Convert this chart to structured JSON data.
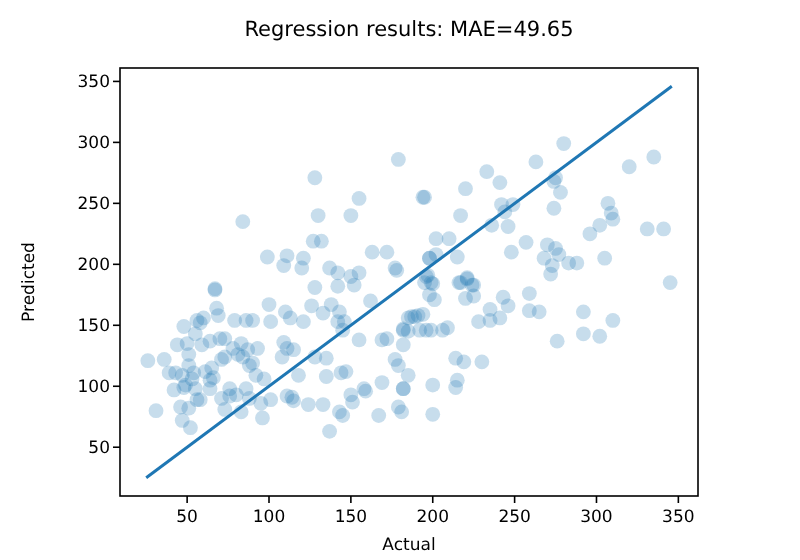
{
  "chart_data": {
    "type": "scatter",
    "title": "Regression results: MAE=49.65",
    "xlabel": "Actual",
    "ylabel": "Predicted",
    "xlim": [
      9,
      362
    ],
    "ylim": [
      10,
      361
    ],
    "xticks": [
      50,
      100,
      150,
      200,
      250,
      300,
      350
    ],
    "yticks": [
      50,
      100,
      150,
      200,
      250,
      300,
      350
    ],
    "grid": false,
    "marker": "circle",
    "series": [
      {
        "color": "#1f77b4",
        "x": [
          179,
          128,
          155,
          84,
          130,
          150,
          194,
          127,
          132,
          99,
          111,
          121,
          109,
          120,
          163,
          172,
          137,
          142,
          150,
          177,
          198,
          128,
          142,
          67,
          280,
          263,
          320,
          335,
          233,
          241,
          220,
          275,
          274,
          278,
          195,
          242,
          249,
          244,
          274,
          307,
          309,
          310,
          217,
          236,
          246,
          302,
          296,
          331,
          341,
          202,
          210,
          257,
          270,
          275,
          277,
          248,
          215,
          268,
          273,
          283,
          288,
          305,
          198,
          202,
          196,
          199,
          221,
          217,
          224,
          345,
          67,
          68,
          69,
          48,
          58,
          55,
          79,
          86,
          90,
          100,
          101,
          110,
          113,
          121,
          126,
          133,
          138,
          143,
          142,
          146,
          145,
          152,
          155,
          162,
          178,
          187,
          194,
          182,
          192,
          169,
          172,
          155,
          177,
          179,
          169,
          182,
          179,
          181,
          167,
          159,
          158,
          150,
          151,
          144,
          147,
          135,
          133,
          143,
          145,
          137,
          128,
          135,
          118,
          109,
          111,
          115,
          108,
          111,
          114,
          115,
          124,
          101,
          95,
          96,
          92,
          90,
          88,
          97,
          84,
          87,
          93,
          78,
          81,
          83,
          70,
          73,
          71,
          73,
          65,
          66,
          76,
          76,
          80,
          71,
          73,
          86,
          88,
          83,
          61,
          64,
          64,
          55,
          58,
          51,
          54,
          53,
          44,
          50,
          51,
          39,
          43,
          42,
          47,
          49,
          48,
          46,
          51,
          47,
          52,
          26,
          31,
          56,
          64,
          59,
          60,
          56,
          36,
          197,
          200,
          195,
          198,
          201,
          216,
          221,
          225,
          220,
          225,
          243,
          246,
          259,
          259,
          265,
          272,
          228,
          235,
          235,
          241,
          292,
          310,
          276,
          292,
          302,
          185,
          189,
          191,
          182,
          185,
          196,
          199,
          206,
          209,
          182,
          214,
          219,
          230,
          185,
          182,
          215,
          214,
          200,
          200
        ],
        "values": [
          286,
          271,
          254,
          235,
          240,
          240,
          255,
          219,
          219,
          206,
          207,
          205,
          199,
          197,
          210,
          210,
          197,
          193,
          190,
          197,
          205,
          181,
          182,
          180,
          299,
          284,
          280,
          288,
          276,
          267,
          262,
          271,
          268,
          259,
          255,
          249,
          249,
          243,
          246,
          250,
          242,
          237,
          240,
          232,
          231,
          232,
          225,
          229,
          229,
          221,
          221,
          218,
          216,
          213,
          208,
          210,
          206,
          205,
          199,
          201,
          201,
          205,
          205,
          208,
          190,
          185,
          189,
          185,
          183,
          185,
          179,
          164,
          158,
          149,
          152,
          143,
          154,
          154,
          154,
          167,
          153,
          161,
          156,
          153,
          166,
          160,
          167,
          161,
          153,
          153,
          146,
          183,
          193,
          170,
          195,
          157,
          159,
          146,
          146,
          138,
          139,
          138,
          122,
          117,
          103,
          98,
          83,
          79,
          76,
          96,
          98,
          93,
          87,
          111,
          112,
          108,
          85,
          79,
          76,
          63,
          124,
          123,
          109,
          136,
          131,
          130,
          124,
          92,
          91,
          88,
          85,
          89,
          86,
          74,
          109,
          119,
          117,
          106,
          124,
          130,
          131,
          131,
          126,
          135,
          139,
          139,
          122,
          124,
          115,
          107,
          98,
          92,
          93,
          90,
          81,
          98,
          90,
          79,
          112,
          105,
          98,
          98,
          89,
          117,
          111,
          106,
          134,
          135,
          126,
          111,
          111,
          97,
          109,
          101,
          99,
          83,
          82,
          72,
          66,
          121,
          80,
          89,
          137,
          134,
          156,
          154,
          122,
          191,
          184,
          185,
          175,
          171,
          185,
          188,
          183,
          172,
          174,
          173,
          166,
          176,
          162,
          161,
          192,
          153,
          154,
          163,
          156,
          161,
          154,
          137,
          143,
          141,
          156,
          157,
          158,
          147,
          145,
          146,
          146,
          146,
          148,
          134,
          123,
          120,
          120,
          109,
          98,
          105,
          99,
          101,
          77
        ]
      },
      {
        "type": "line",
        "color": "#1f77b4",
        "marker": "none",
        "x": [
          25,
          346
        ],
        "values": [
          25,
          346
        ]
      }
    ]
  }
}
